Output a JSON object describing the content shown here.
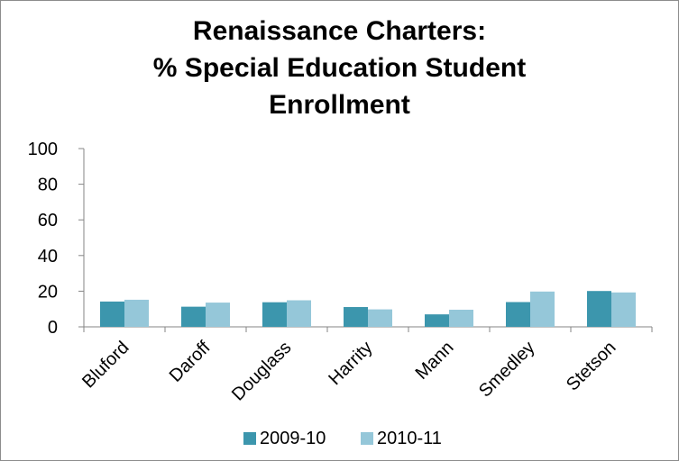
{
  "chart_data": {
    "type": "bar",
    "title_lines": [
      "Renaissance Charters:",
      "% Special Education Student",
      "Enrollment"
    ],
    "categories": [
      "Bluford",
      "Daroff",
      "Douglass",
      "Harrity",
      "Mann",
      "Smedley",
      "Stetson"
    ],
    "series": [
      {
        "name": "2009-10",
        "color": "#3c96ad",
        "values": [
          14.2,
          11.3,
          13.8,
          11.1,
          7.0,
          13.9,
          20.1
        ]
      },
      {
        "name": "2010-11",
        "color": "#95c7d9",
        "values": [
          15.2,
          13.6,
          14.9,
          9.8,
          9.6,
          19.8,
          19.3
        ]
      }
    ],
    "ylim": [
      0,
      100
    ],
    "yticks": [
      0,
      20,
      40,
      60,
      80,
      100
    ],
    "xlabel": "",
    "ylabel": "",
    "grid": false,
    "legend_position": "bottom"
  }
}
